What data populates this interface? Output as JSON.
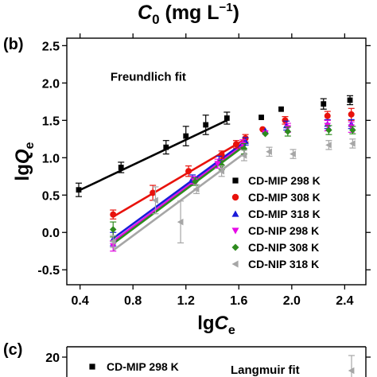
{
  "top_header": {
    "symbol": "C",
    "subscript": "0",
    "unit": " (mg L",
    "unit_sup": "−1",
    "unit_close": ")"
  },
  "panels": {
    "b": "(b)",
    "c": "(c)"
  },
  "chart_data": [
    {
      "type": "scatter",
      "panel": "(b)",
      "title": "Freundlich fit",
      "xlabel": {
        "main": "lg",
        "italic": "C",
        "sub": "e"
      },
      "ylabel": {
        "main": "lg",
        "italic": "Q",
        "sub": "e"
      },
      "xlim": [
        0.3,
        2.56
      ],
      "ylim": [
        -0.7,
        2.6
      ],
      "xticks": [
        0.4,
        0.8,
        1.2,
        1.6,
        2.0,
        2.4
      ],
      "xtick_labels": [
        "0.4",
        "0.8",
        "1.2",
        "1.6",
        "2.0",
        "2.4"
      ],
      "yticks": [
        -0.5,
        0.0,
        0.5,
        1.0,
        1.5,
        2.0,
        2.5
      ],
      "ytick_labels": [
        "-0.5",
        "0.0",
        "0.5",
        "1.0",
        "1.5",
        "2.0",
        "2.5"
      ],
      "legend_position": "lower-right",
      "series": [
        {
          "name": "CD-MIP 298 K",
          "color": "#000000",
          "marker": "square",
          "points": [
            [
              0.39,
              0.57,
              0.09
            ],
            [
              0.71,
              0.87,
              0.07
            ],
            [
              1.05,
              1.14,
              0.09
            ],
            [
              1.2,
              1.29,
              0.13
            ],
            [
              1.35,
              1.44,
              0.13
            ],
            [
              1.51,
              1.53,
              0.08
            ],
            [
              1.77,
              1.54,
              0
            ],
            [
              1.92,
              1.65,
              0
            ],
            [
              2.24,
              1.72,
              0.07
            ],
            [
              2.44,
              1.77,
              0.06
            ]
          ],
          "fit": [
            [
              0.39,
              0.56
            ],
            [
              1.51,
              1.5
            ]
          ]
        },
        {
          "name": "CD-MIP 308 K",
          "color": "#e8120c",
          "marker": "circle",
          "points": [
            [
              0.65,
              0.24,
              0.06
            ],
            [
              0.95,
              0.53,
              0.1
            ],
            [
              1.22,
              0.82,
              0.07
            ],
            [
              1.47,
              1.04,
              0.05
            ],
            [
              1.58,
              1.18,
              0.05
            ],
            [
              1.65,
              1.26,
              0.05
            ],
            [
              1.78,
              1.38,
              0
            ],
            [
              1.95,
              1.5,
              0.05
            ],
            [
              2.27,
              1.56,
              0.06
            ],
            [
              2.45,
              1.58,
              0.08
            ]
          ],
          "fit": [
            [
              0.65,
              0.21
            ],
            [
              1.65,
              1.25
            ]
          ]
        },
        {
          "name": "CD-MIP 318 K",
          "color": "#1a1ad9",
          "marker": "triangle-up",
          "points": [
            [
              0.65,
              -0.09,
              0.09
            ],
            [
              1.25,
              0.72,
              0.05
            ],
            [
              1.45,
              0.96,
              0.06
            ],
            [
              1.65,
              1.22,
              0.05
            ],
            [
              1.8,
              1.36,
              0
            ],
            [
              1.96,
              1.43,
              0.06
            ],
            [
              2.27,
              1.45,
              0.06
            ],
            [
              2.45,
              1.45,
              0.06
            ]
          ],
          "fit": [
            [
              0.65,
              -0.08
            ],
            [
              1.65,
              1.22
            ]
          ]
        },
        {
          "name": "CD-NIP 298 K",
          "color": "#e60ae6",
          "marker": "triangle-down",
          "points": [
            [
              0.65,
              -0.18,
              0.07
            ],
            [
              1.26,
              0.7,
              0.05
            ],
            [
              1.44,
              0.92,
              0.06
            ],
            [
              1.63,
              1.18,
              0.06
            ],
            [
              1.8,
              1.33,
              0
            ],
            [
              1.97,
              1.4,
              0.06
            ],
            [
              2.27,
              1.43,
              0.07
            ],
            [
              2.45,
              1.41,
              0.07
            ]
          ],
          "fit": [
            [
              0.65,
              -0.12
            ],
            [
              1.65,
              1.19
            ]
          ]
        },
        {
          "name": "CD-NIP 308 K",
          "color": "#2e8b1e",
          "marker": "diamond",
          "points": [
            [
              0.65,
              0.04,
              0.1
            ],
            [
              1.27,
              0.68,
              0.05
            ],
            [
              1.47,
              0.9,
              0.06
            ],
            [
              1.64,
              1.12,
              0.07
            ],
            [
              1.8,
              1.32,
              0
            ],
            [
              1.97,
              1.35,
              0.06
            ],
            [
              2.28,
              1.37,
              0.06
            ],
            [
              2.46,
              1.37,
              0.05
            ]
          ],
          "fit": [
            [
              0.65,
              -0.15
            ],
            [
              1.65,
              1.17
            ]
          ]
        },
        {
          "name": "CD-NIP 318 K",
          "color": "#a6a6a6",
          "marker": "triangle-left",
          "points": [
            [
              0.65,
              -0.12,
              0.08
            ],
            [
              0.97,
              0.43,
              0.18
            ],
            [
              1.16,
              0.14,
              0.28
            ],
            [
              1.28,
              0.58,
              0.06
            ],
            [
              1.47,
              0.82,
              0.07
            ],
            [
              1.64,
              1.03,
              0.07
            ],
            [
              1.83,
              1.08,
              0.06
            ],
            [
              2.01,
              1.05,
              0.06
            ],
            [
              2.28,
              1.17,
              0.06
            ],
            [
              2.46,
              1.19,
              0.06
            ]
          ],
          "fit": [
            [
              0.65,
              -0.24
            ],
            [
              1.65,
              1.07
            ]
          ]
        }
      ]
    },
    {
      "type": "scatter",
      "panel": "(c)",
      "title": "Langmuir fit",
      "yticks": [
        20
      ],
      "ytick_labels": [
        "20"
      ],
      "series": [
        {
          "name": "CD-MIP 298 K",
          "color": "#000000",
          "marker": "square"
        },
        {
          "name": "",
          "color": "#a6a6a6",
          "marker": "triangle-left"
        }
      ]
    }
  ]
}
